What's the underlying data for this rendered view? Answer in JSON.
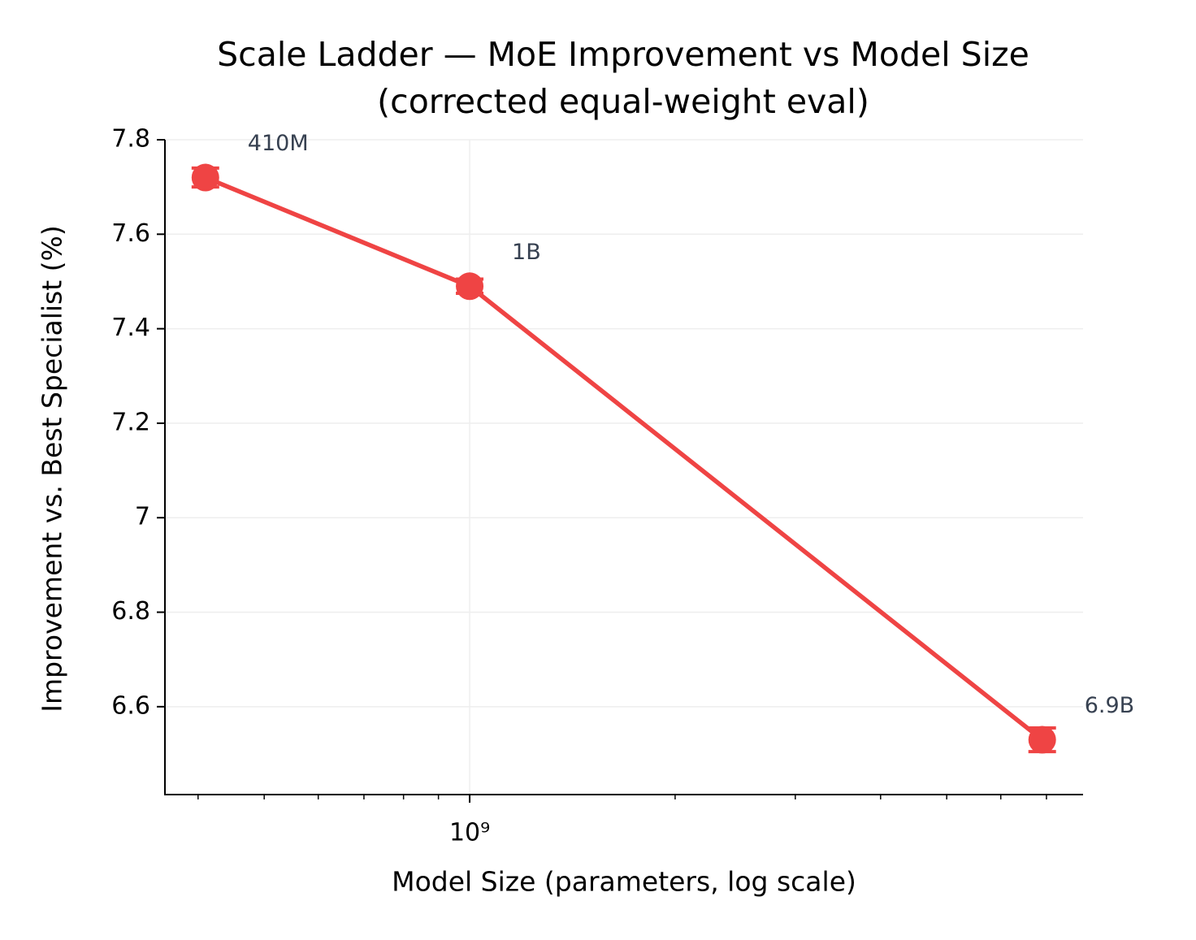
{
  "chart_data": {
    "type": "line",
    "title": "Scale Ladder — MoE Improvement vs Model Size",
    "subtitle": "(corrected equal-weight eval)",
    "x_label": "Model Size (parameters, log scale)",
    "y_label": "Improvement vs. Best Specialist (%)",
    "x": [
      410000000,
      1000000000,
      6900000000
    ],
    "values": [
      7.72,
      7.49,
      6.53
    ],
    "errors": [
      0.02,
      0.015,
      0.025
    ],
    "point_labels": [
      "410M",
      "1B",
      "6.9B"
    ],
    "color": "#ef4444",
    "x_log": true,
    "xlim": [
      357700000,
      7920000000
    ],
    "xticks": [
      {
        "value": 1000000000,
        "label": "10⁹"
      }
    ],
    "xminorticks": [
      400000000,
      500000000,
      600000000,
      700000000,
      800000000,
      900000000,
      2000000000,
      3000000000,
      4000000000,
      5000000000,
      6000000000,
      7000000000
    ],
    "ylim": [
      6.414,
      7.8
    ],
    "yticks": [
      6.6,
      6.8,
      7.0,
      7.2,
      7.4,
      7.6,
      7.8
    ],
    "grid": true
  }
}
